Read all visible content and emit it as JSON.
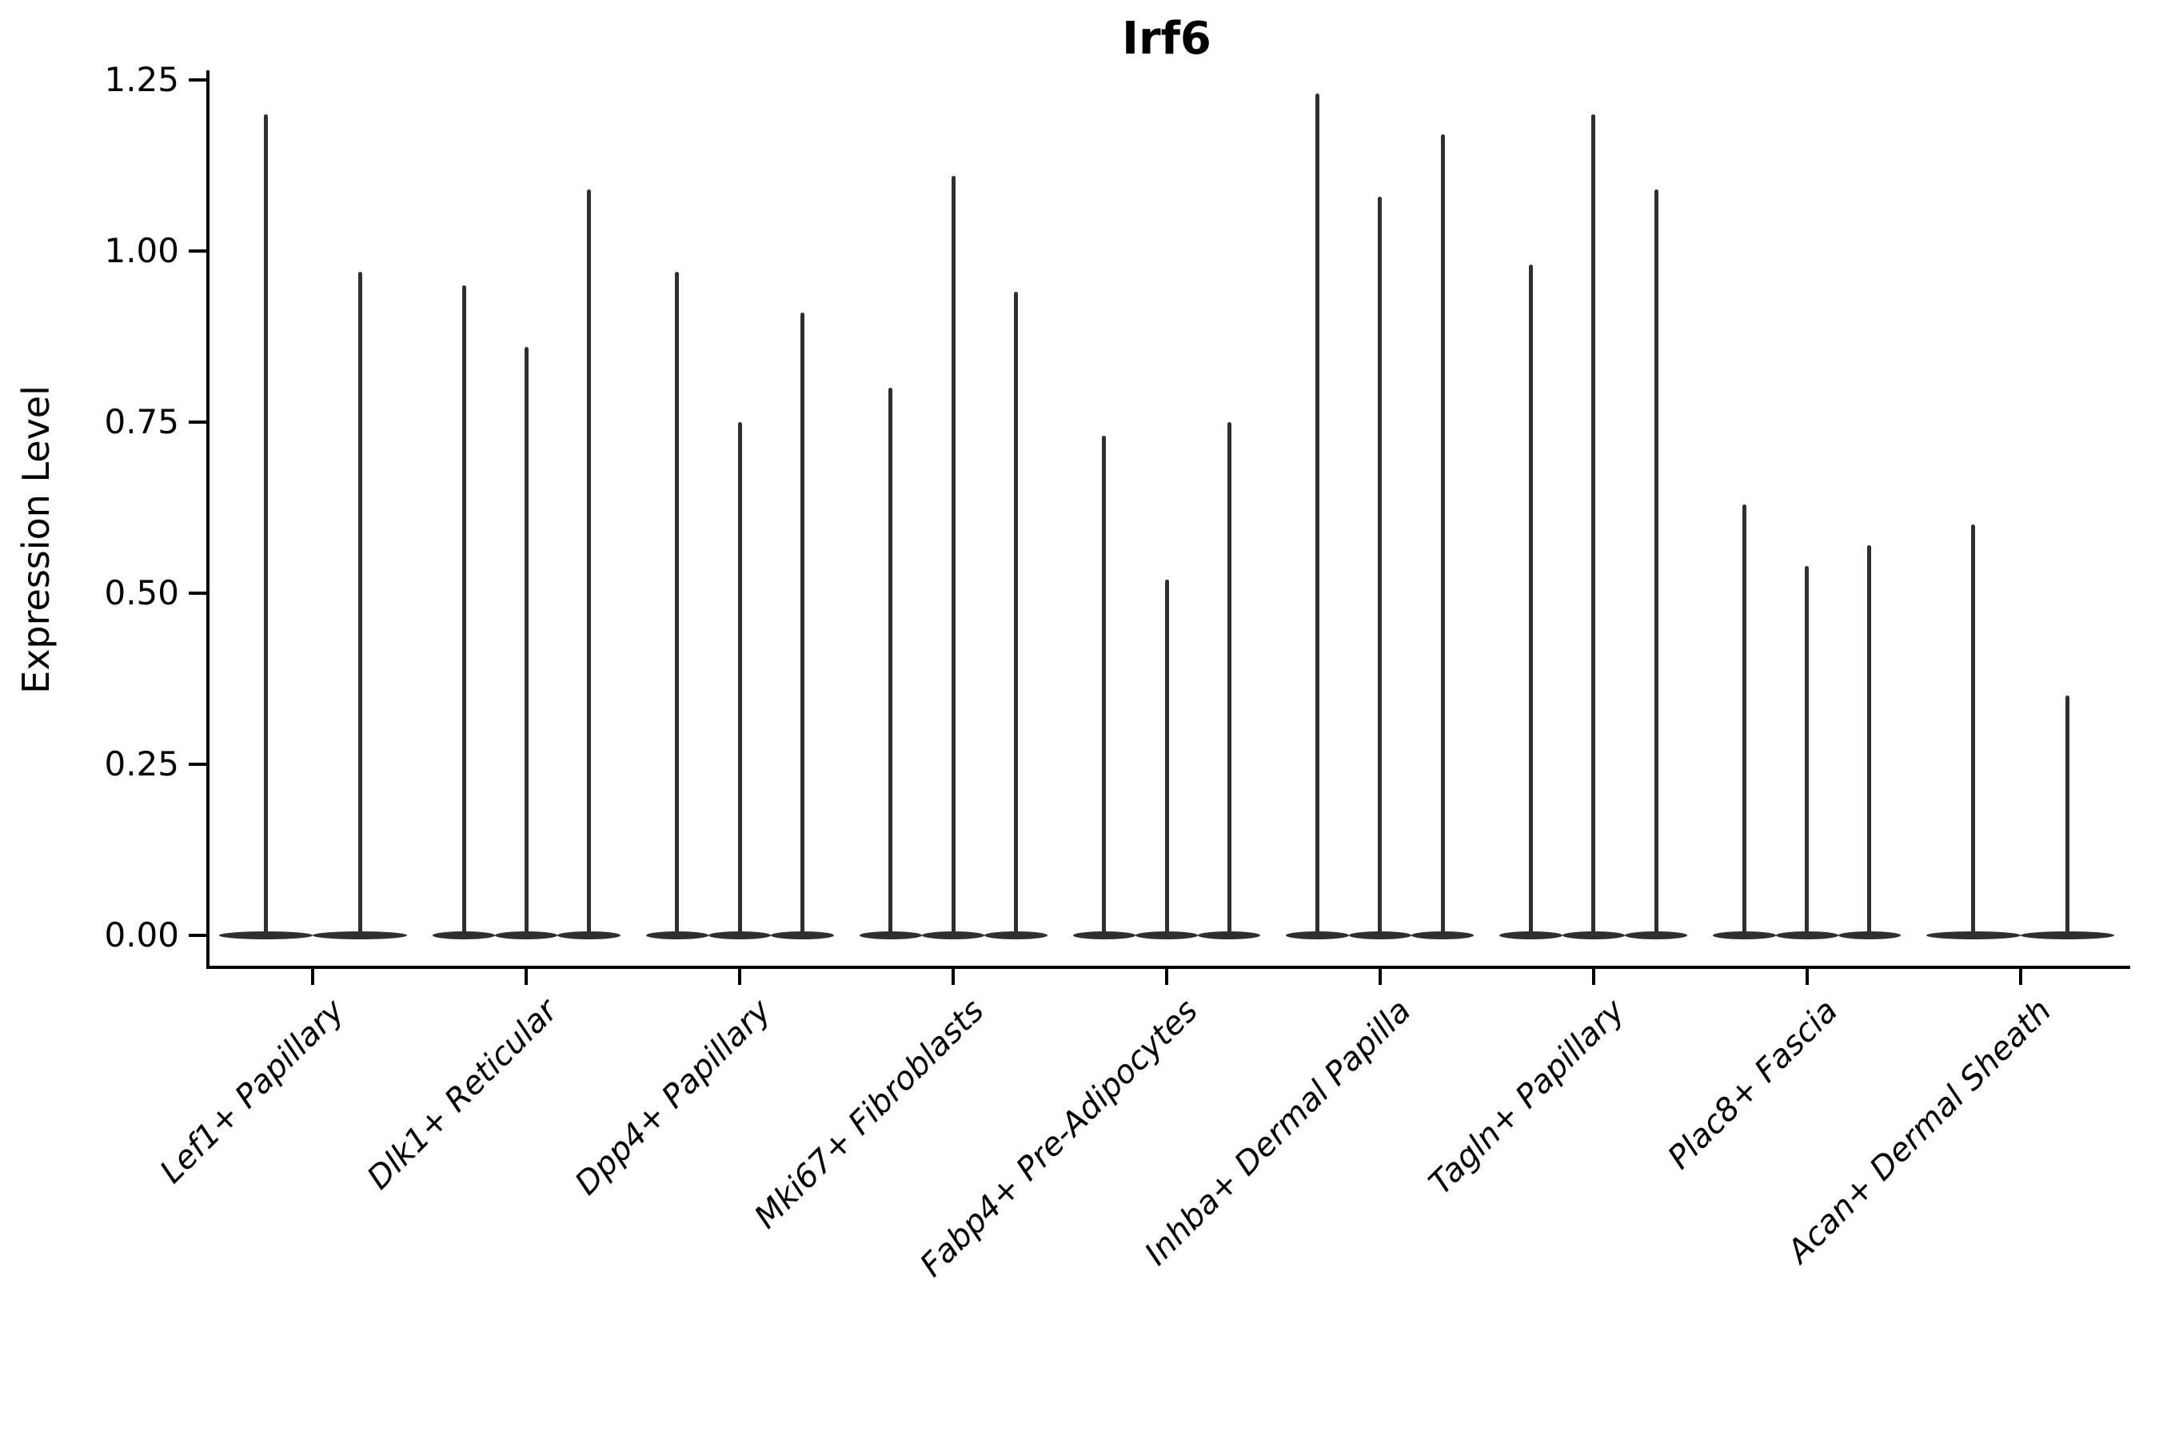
{
  "title": "Irf6",
  "y_axis": {
    "label": "Expression Level",
    "ticks": [
      {
        "label": "0.00",
        "value": 0.0
      },
      {
        "label": "0.25",
        "value": 0.25
      },
      {
        "label": "0.50",
        "value": 0.5
      },
      {
        "label": "0.75",
        "value": 0.75
      },
      {
        "label": "1.00",
        "value": 1.0
      },
      {
        "label": "1.25",
        "value": 1.25
      }
    ]
  },
  "chart_data": {
    "type": "violin",
    "title": "Irf6",
    "xlabel": "",
    "ylabel": "Expression Level",
    "ylim": [
      -0.04,
      1.27
    ],
    "legend": "none",
    "grid": false,
    "violin_color": "#2f2f2f",
    "note": "Single-cell expression violins: each violin is a flat density bulge at 0 with a thin spike reaching the maximum expression level",
    "categories": [
      "Lef1+ Papillary",
      "Dlk1+ Reticular",
      "Dpp4+ Papillary",
      "Mki67+ Fibroblasts",
      "Fabp4+ Pre-Adipocytes",
      "Inhba+ Dermal Papilla",
      "Tagln+ Papillary",
      "Plac8+ Fascia",
      "Acan+ Dermal Sheath"
    ],
    "groups": [
      {
        "label": "Lef1+ Papillary",
        "spike_maxima": [
          1.2,
          0.97
        ]
      },
      {
        "label": "Dlk1+ Reticular",
        "spike_maxima": [
          0.95,
          0.86,
          1.09
        ]
      },
      {
        "label": "Dpp4+ Papillary",
        "spike_maxima": [
          0.97,
          0.75,
          0.91
        ]
      },
      {
        "label": "Mki67+ Fibroblasts",
        "spike_maxima": [
          0.8,
          1.11,
          0.94
        ]
      },
      {
        "label": "Fabp4+ Pre-Adipocytes",
        "spike_maxima": [
          0.73,
          0.52,
          0.75
        ]
      },
      {
        "label": "Inhba+ Dermal Papilla",
        "spike_maxima": [
          1.23,
          1.08,
          1.17
        ]
      },
      {
        "label": "Tagln+ Papillary",
        "spike_maxima": [
          0.98,
          1.2,
          1.09
        ]
      },
      {
        "label": "Plac8+ Fascia",
        "spike_maxima": [
          0.63,
          0.54,
          0.57
        ]
      },
      {
        "label": "Acan+ Dermal Sheath",
        "spike_maxima": [
          0.6,
          0.35
        ]
      }
    ]
  }
}
